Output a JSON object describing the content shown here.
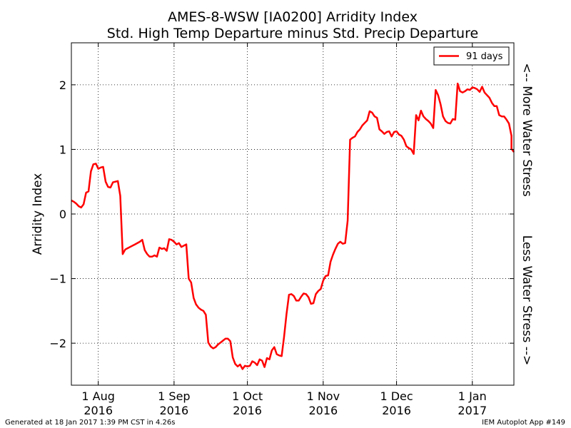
{
  "chart_data": {
    "type": "line",
    "title": "AMES-8-WSW [IA0200]  Arridity Index",
    "subtitle": "Std. High Temp Departure minus Std. Precip Departure",
    "ylabel": "Arridity Index",
    "right_label_top": "<-- More Water Stress",
    "right_label_bottom": "Less Water Stress -->",
    "ylim": [
      -2.65,
      2.65
    ],
    "xlim": [
      "2016-07-21",
      "2017-01-18"
    ],
    "grid": true,
    "legend_position": "top-right",
    "y_ticks": [
      {
        "value": -2,
        "label": "−2"
      },
      {
        "value": -1,
        "label": "−1"
      },
      {
        "value": 0,
        "label": "0"
      },
      {
        "value": 1,
        "label": "1"
      },
      {
        "value": 2,
        "label": "2"
      }
    ],
    "x_ticks": [
      {
        "date": "2016-08-01",
        "label1": "1 Aug",
        "label2": "2016"
      },
      {
        "date": "2016-09-01",
        "label1": "1 Sep",
        "label2": "2016"
      },
      {
        "date": "2016-10-01",
        "label1": "1 Oct",
        "label2": "2016"
      },
      {
        "date": "2016-11-01",
        "label1": "1 Nov",
        "label2": "2016"
      },
      {
        "date": "2016-12-01",
        "label1": "1 Dec",
        "label2": "2016"
      },
      {
        "date": "2017-01-01",
        "label1": "1 Jan",
        "label2": "2017"
      }
    ],
    "series": [
      {
        "name": "91 days",
        "color": "#ff0000",
        "points": [
          [
            "2016-07-21",
            0.21
          ],
          [
            "2016-07-22",
            0.19
          ],
          [
            "2016-07-23",
            0.16
          ],
          [
            "2016-07-24",
            0.12
          ],
          [
            "2016-07-25",
            0.1
          ],
          [
            "2016-07-26",
            0.15
          ],
          [
            "2016-07-27",
            0.33
          ],
          [
            "2016-07-28",
            0.35
          ],
          [
            "2016-07-29",
            0.66
          ],
          [
            "2016-07-30",
            0.77
          ],
          [
            "2016-07-31",
            0.78
          ],
          [
            "2016-08-01",
            0.7
          ],
          [
            "2016-08-02",
            0.72
          ],
          [
            "2016-08-03",
            0.73
          ],
          [
            "2016-08-04",
            0.5
          ],
          [
            "2016-08-05",
            0.42
          ],
          [
            "2016-08-06",
            0.41
          ],
          [
            "2016-08-07",
            0.49
          ],
          [
            "2016-08-08",
            0.5
          ],
          [
            "2016-08-09",
            0.51
          ],
          [
            "2016-08-10",
            0.28
          ],
          [
            "2016-08-11",
            -0.62
          ],
          [
            "2016-08-12",
            -0.55
          ],
          [
            "2016-08-13",
            -0.53
          ],
          [
            "2016-08-14",
            -0.51
          ],
          [
            "2016-08-16",
            -0.47
          ],
          [
            "2016-08-18",
            -0.43
          ],
          [
            "2016-08-19",
            -0.4
          ],
          [
            "2016-08-20",
            -0.56
          ],
          [
            "2016-08-21",
            -0.62
          ],
          [
            "2016-08-22",
            -0.66
          ],
          [
            "2016-08-23",
            -0.66
          ],
          [
            "2016-08-24",
            -0.64
          ],
          [
            "2016-08-25",
            -0.66
          ],
          [
            "2016-08-26",
            -0.52
          ],
          [
            "2016-08-27",
            -0.54
          ],
          [
            "2016-08-28",
            -0.53
          ],
          [
            "2016-08-29",
            -0.57
          ],
          [
            "2016-08-30",
            -0.39
          ],
          [
            "2016-08-31",
            -0.4
          ],
          [
            "2016-09-01",
            -0.43
          ],
          [
            "2016-09-02",
            -0.47
          ],
          [
            "2016-09-03",
            -0.45
          ],
          [
            "2016-09-04",
            -0.51
          ],
          [
            "2016-09-05",
            -0.49
          ],
          [
            "2016-09-06",
            -0.47
          ],
          [
            "2016-09-07",
            -1.0
          ],
          [
            "2016-09-08",
            -1.06
          ],
          [
            "2016-09-09",
            -1.3
          ],
          [
            "2016-09-10",
            -1.4
          ],
          [
            "2016-09-11",
            -1.45
          ],
          [
            "2016-09-12",
            -1.48
          ],
          [
            "2016-09-13",
            -1.5
          ],
          [
            "2016-09-14",
            -1.56
          ],
          [
            "2016-09-15",
            -1.99
          ],
          [
            "2016-09-16",
            -2.05
          ],
          [
            "2016-09-17",
            -2.08
          ],
          [
            "2016-09-18",
            -2.06
          ],
          [
            "2016-09-19",
            -2.02
          ],
          [
            "2016-09-20",
            -1.99
          ],
          [
            "2016-09-21",
            -1.96
          ],
          [
            "2016-09-22",
            -1.93
          ],
          [
            "2016-09-23",
            -1.93
          ],
          [
            "2016-09-24",
            -1.97
          ],
          [
            "2016-09-25",
            -2.22
          ],
          [
            "2016-09-26",
            -2.32
          ],
          [
            "2016-09-27",
            -2.36
          ],
          [
            "2016-09-28",
            -2.33
          ],
          [
            "2016-09-29",
            -2.4
          ],
          [
            "2016-09-30",
            -2.35
          ],
          [
            "2016-10-01",
            -2.36
          ],
          [
            "2016-10-02",
            -2.35
          ],
          [
            "2016-10-03",
            -2.28
          ],
          [
            "2016-10-04",
            -2.3
          ],
          [
            "2016-10-05",
            -2.34
          ],
          [
            "2016-10-06",
            -2.25
          ],
          [
            "2016-10-07",
            -2.27
          ],
          [
            "2016-10-08",
            -2.37
          ],
          [
            "2016-10-09",
            -2.23
          ],
          [
            "2016-10-10",
            -2.25
          ],
          [
            "2016-10-11",
            -2.11
          ],
          [
            "2016-10-12",
            -2.06
          ],
          [
            "2016-10-13",
            -2.17
          ],
          [
            "2016-10-14",
            -2.19
          ],
          [
            "2016-10-15",
            -2.2
          ],
          [
            "2016-10-16",
            -1.9
          ],
          [
            "2016-10-17",
            -1.55
          ],
          [
            "2016-10-18",
            -1.25
          ],
          [
            "2016-10-19",
            -1.24
          ],
          [
            "2016-10-20",
            -1.27
          ],
          [
            "2016-10-21",
            -1.34
          ],
          [
            "2016-10-22",
            -1.34
          ],
          [
            "2016-10-23",
            -1.28
          ],
          [
            "2016-10-24",
            -1.23
          ],
          [
            "2016-10-25",
            -1.24
          ],
          [
            "2016-10-26",
            -1.29
          ],
          [
            "2016-10-27",
            -1.39
          ],
          [
            "2016-10-28",
            -1.38
          ],
          [
            "2016-10-29",
            -1.24
          ],
          [
            "2016-10-30",
            -1.19
          ],
          [
            "2016-10-31",
            -1.16
          ],
          [
            "2016-11-01",
            -1.03
          ],
          [
            "2016-11-02",
            -0.96
          ],
          [
            "2016-11-03",
            -0.95
          ],
          [
            "2016-11-04",
            -0.74
          ],
          [
            "2016-11-05",
            -0.63
          ],
          [
            "2016-11-06",
            -0.54
          ],
          [
            "2016-11-07",
            -0.46
          ],
          [
            "2016-11-08",
            -0.43
          ],
          [
            "2016-11-09",
            -0.46
          ],
          [
            "2016-11-10",
            -0.45
          ],
          [
            "2016-11-11",
            -0.1
          ],
          [
            "2016-11-12",
            1.15
          ],
          [
            "2016-11-13",
            1.18
          ],
          [
            "2016-11-14",
            1.2
          ],
          [
            "2016-11-15",
            1.27
          ],
          [
            "2016-11-16",
            1.31
          ],
          [
            "2016-11-17",
            1.37
          ],
          [
            "2016-11-18",
            1.41
          ],
          [
            "2016-11-19",
            1.45
          ],
          [
            "2016-11-20",
            1.59
          ],
          [
            "2016-11-21",
            1.57
          ],
          [
            "2016-11-22",
            1.51
          ],
          [
            "2016-11-23",
            1.49
          ],
          [
            "2016-11-24",
            1.31
          ],
          [
            "2016-11-25",
            1.28
          ],
          [
            "2016-11-26",
            1.24
          ],
          [
            "2016-11-27",
            1.27
          ],
          [
            "2016-11-28",
            1.28
          ],
          [
            "2016-11-29",
            1.2
          ],
          [
            "2016-11-30",
            1.27
          ],
          [
            "2016-12-01",
            1.28
          ],
          [
            "2016-12-02",
            1.23
          ],
          [
            "2016-12-03",
            1.21
          ],
          [
            "2016-12-04",
            1.15
          ],
          [
            "2016-12-05",
            1.05
          ],
          [
            "2016-12-06",
            1.02
          ],
          [
            "2016-12-07",
            1.0
          ],
          [
            "2016-12-08",
            0.93
          ],
          [
            "2016-12-09",
            1.53
          ],
          [
            "2016-12-10",
            1.45
          ],
          [
            "2016-12-11",
            1.6
          ],
          [
            "2016-12-12",
            1.51
          ],
          [
            "2016-12-13",
            1.47
          ],
          [
            "2016-12-14",
            1.44
          ],
          [
            "2016-12-15",
            1.4
          ],
          [
            "2016-12-16",
            1.33
          ],
          [
            "2016-12-17",
            1.92
          ],
          [
            "2016-12-18",
            1.84
          ],
          [
            "2016-12-19",
            1.7
          ],
          [
            "2016-12-20",
            1.51
          ],
          [
            "2016-12-21",
            1.44
          ],
          [
            "2016-12-22",
            1.41
          ],
          [
            "2016-12-23",
            1.4
          ],
          [
            "2016-12-24",
            1.47
          ],
          [
            "2016-12-25",
            1.46
          ],
          [
            "2016-12-26",
            2.02
          ],
          [
            "2016-12-27",
            1.9
          ],
          [
            "2016-12-28",
            1.88
          ],
          [
            "2016-12-29",
            1.9
          ],
          [
            "2016-12-30",
            1.93
          ],
          [
            "2016-12-31",
            1.92
          ],
          [
            "2017-01-01",
            1.96
          ],
          [
            "2017-01-02",
            1.95
          ],
          [
            "2017-01-03",
            1.93
          ],
          [
            "2017-01-04",
            1.89
          ],
          [
            "2017-01-05",
            1.97
          ],
          [
            "2017-01-06",
            1.88
          ],
          [
            "2017-01-07",
            1.84
          ],
          [
            "2017-01-08",
            1.8
          ],
          [
            "2017-01-09",
            1.72
          ],
          [
            "2017-01-10",
            1.67
          ],
          [
            "2017-01-11",
            1.67
          ],
          [
            "2017-01-12",
            1.53
          ],
          [
            "2017-01-13",
            1.51
          ],
          [
            "2017-01-14",
            1.51
          ],
          [
            "2017-01-15",
            1.46
          ],
          [
            "2017-01-16",
            1.4
          ],
          [
            "2017-01-17",
            1.21
          ],
          [
            "2017-01-17",
            1.01
          ],
          [
            "2017-01-18",
            0.96
          ]
        ]
      }
    ]
  },
  "footer": {
    "left": "Generated at 18 Jan 2017 1:39 PM CST in 4.26s",
    "right": "IEM Autoplot App #149"
  }
}
